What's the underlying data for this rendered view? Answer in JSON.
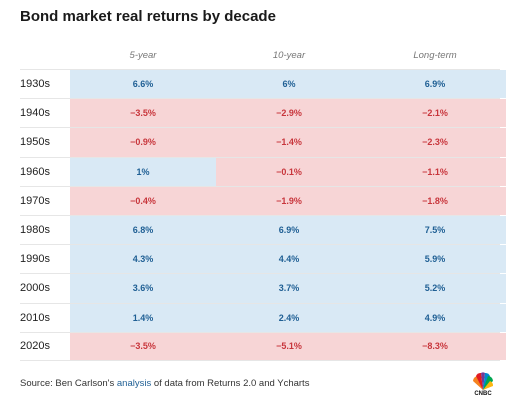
{
  "title": "Bond market real returns by decade",
  "footer": {
    "prefix": "Source: Ben Carlson's ",
    "link": "analysis",
    "suffix": " of data from Returns 2.0 and Ycharts"
  },
  "logo_text": "CNBC",
  "colors": {
    "positive_bg": "#d9e9f5",
    "positive_text": "#1f5f94",
    "negative_bg": "#f7d5d6",
    "negative_text": "#c8363c"
  },
  "chart_data": {
    "type": "table",
    "title": "Bond market real returns by decade",
    "columns": [
      "5-year",
      "10-year",
      "Long-term"
    ],
    "rows": [
      {
        "label": "1930s",
        "values": [
          "6.6%",
          "6%",
          "6.9%"
        ]
      },
      {
        "label": "1940s",
        "values": [
          "−3.5%",
          "−2.9%",
          "−2.1%"
        ]
      },
      {
        "label": "1950s",
        "values": [
          "−0.9%",
          "−1.4%",
          "−2.3%"
        ]
      },
      {
        "label": "1960s",
        "values": [
          "1%",
          "−0.1%",
          "−1.1%"
        ]
      },
      {
        "label": "1970s",
        "values": [
          "−0.4%",
          "−1.9%",
          "−1.8%"
        ]
      },
      {
        "label": "1980s",
        "values": [
          "6.8%",
          "6.9%",
          "7.5%"
        ]
      },
      {
        "label": "1990s",
        "values": [
          "4.3%",
          "4.4%",
          "5.9%"
        ]
      },
      {
        "label": "2000s",
        "values": [
          "3.6%",
          "3.7%",
          "5.2%"
        ]
      },
      {
        "label": "2010s",
        "values": [
          "1.4%",
          "2.4%",
          "4.9%"
        ]
      },
      {
        "label": "2020s",
        "values": [
          "−3.5%",
          "−5.1%",
          "−8.3%"
        ]
      }
    ]
  }
}
